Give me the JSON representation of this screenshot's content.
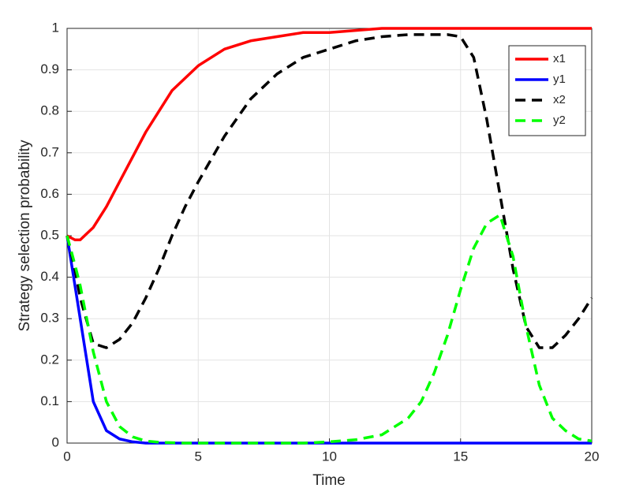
{
  "chart_data": {
    "type": "line",
    "xlabel": "Time",
    "ylabel": "Strategy selection probability",
    "x": [
      0,
      0.3,
      0.5,
      1,
      1.5,
      2,
      2.5,
      3,
      3.5,
      4,
      4.5,
      5,
      6,
      7,
      8,
      9,
      10,
      11,
      12,
      13,
      13.5,
      14,
      14.5,
      15,
      15.5,
      16,
      16.5,
      17,
      17.5,
      18,
      18.5,
      19,
      19.5,
      20
    ],
    "series": [
      {
        "name": "x1",
        "color": "#ff0000",
        "style": "solid",
        "values": [
          0.5,
          0.49,
          0.49,
          0.52,
          0.57,
          0.63,
          0.69,
          0.75,
          0.8,
          0.85,
          0.88,
          0.91,
          0.95,
          0.97,
          0.98,
          0.99,
          0.99,
          0.995,
          1,
          1,
          1,
          1,
          1,
          1,
          1,
          1,
          1,
          1,
          1,
          1,
          1,
          1,
          1,
          1
        ]
      },
      {
        "name": "y1",
        "color": "#0000ff",
        "style": "solid",
        "values": [
          0.5,
          0.38,
          0.3,
          0.1,
          0.03,
          0.01,
          0.003,
          0,
          0,
          0,
          0,
          0,
          0,
          0,
          0,
          0,
          0,
          0,
          0,
          0,
          0,
          0,
          0,
          0,
          0,
          0,
          0,
          0,
          0,
          0,
          0,
          0,
          0,
          0
        ]
      },
      {
        "name": "x2",
        "color": "#000000",
        "style": "dashed",
        "values": [
          0.5,
          0.42,
          0.35,
          0.24,
          0.23,
          0.25,
          0.29,
          0.35,
          0.42,
          0.5,
          0.57,
          0.63,
          0.74,
          0.83,
          0.89,
          0.93,
          0.95,
          0.97,
          0.98,
          0.985,
          0.985,
          0.985,
          0.985,
          0.98,
          0.93,
          0.78,
          0.6,
          0.42,
          0.28,
          0.23,
          0.23,
          0.26,
          0.3,
          0.35
        ]
      },
      {
        "name": "y2",
        "color": "#00ff00",
        "style": "dashed",
        "values": [
          0.5,
          0.43,
          0.38,
          0.22,
          0.1,
          0.04,
          0.015,
          0.005,
          0.002,
          0.001,
          0,
          0,
          0,
          0,
          0,
          0,
          0.003,
          0.008,
          0.02,
          0.06,
          0.1,
          0.17,
          0.26,
          0.37,
          0.47,
          0.53,
          0.55,
          0.45,
          0.28,
          0.14,
          0.06,
          0.03,
          0.01,
          0.005
        ]
      }
    ],
    "xlim": [
      0,
      20
    ],
    "xticks": [
      0,
      5,
      10,
      15,
      20
    ],
    "ylim": [
      0,
      1
    ],
    "yticks": [
      0,
      0.1,
      0.2,
      0.3,
      0.4,
      0.5,
      0.6,
      0.7,
      0.8,
      0.9,
      1
    ],
    "grid": true,
    "legend": "top-right"
  }
}
